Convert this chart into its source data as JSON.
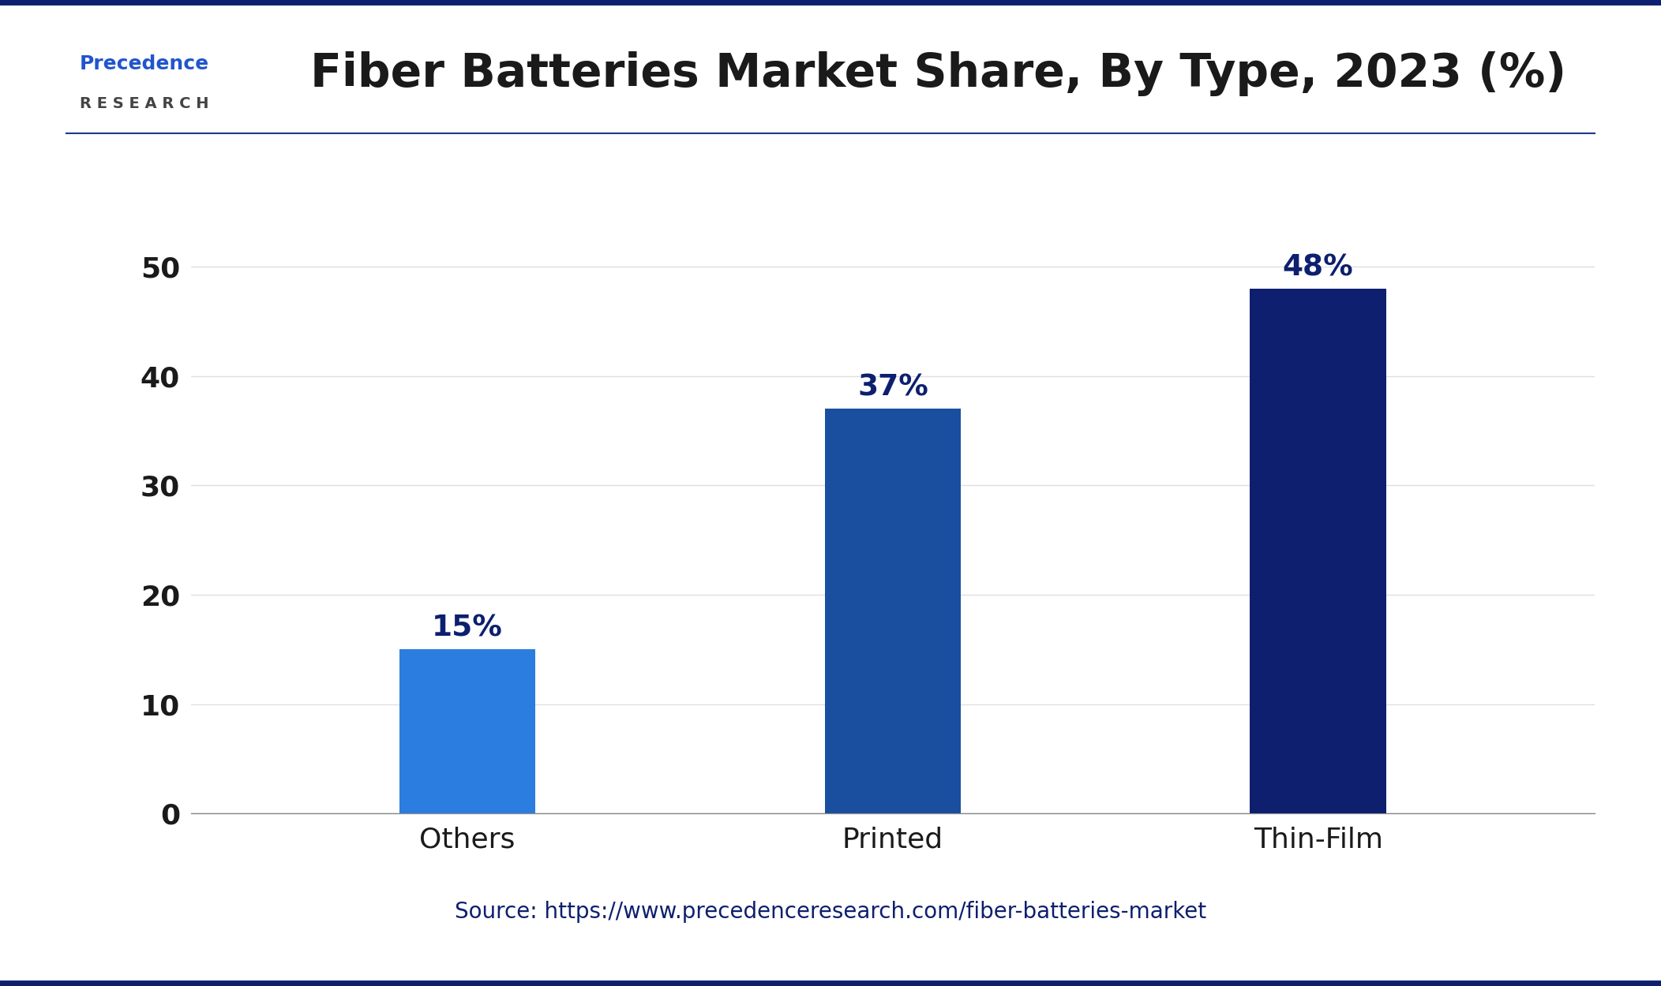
{
  "title": "Fiber Batteries Market Share, By Type, 2023 (%)",
  "categories": [
    "Others",
    "Printed",
    "Thin-Film"
  ],
  "values": [
    15,
    37,
    48
  ],
  "labels": [
    "15%",
    "37%",
    "48%"
  ],
  "bar_colors": [
    "#2b7de0",
    "#1a4fa0",
    "#0d1f6e"
  ],
  "ylim": [
    0,
    55
  ],
  "yticks": [
    0,
    10,
    20,
    30,
    40,
    50
  ],
  "ylabel": "",
  "xlabel": "",
  "source_text": "Source: https://www.precedenceresearch.com/fiber-batteries-market",
  "background_color": "#ffffff",
  "title_fontsize": 42,
  "tick_fontsize": 26,
  "label_fontsize": 27,
  "source_fontsize": 20,
  "border_color": "#0d1f6e",
  "grid_color": "#e0e0e0",
  "bar_width": 0.32,
  "logo_fontsize": 18,
  "logo_research_fontsize": 16
}
